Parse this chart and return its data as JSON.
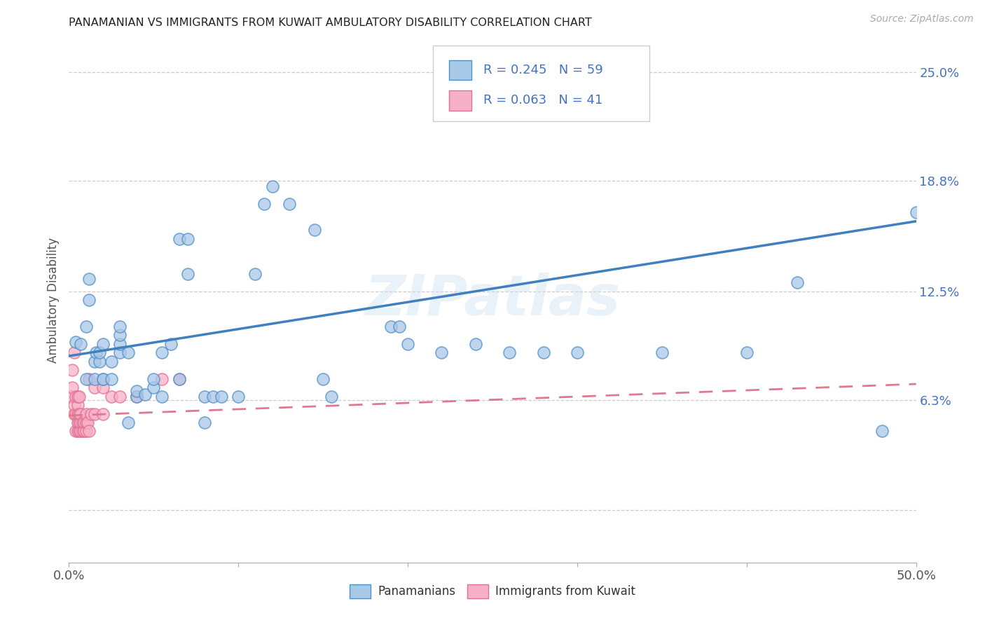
{
  "title": "PANAMANIAN VS IMMIGRANTS FROM KUWAIT AMBULATORY DISABILITY CORRELATION CHART",
  "source": "Source: ZipAtlas.com",
  "ylabel": "Ambulatory Disability",
  "xlim": [
    0.0,
    0.5
  ],
  "ylim": [
    -0.03,
    0.27
  ],
  "ytick_vals": [
    0.0,
    0.063,
    0.125,
    0.188,
    0.25
  ],
  "ytick_labels": [
    "",
    "6.3%",
    "12.5%",
    "18.8%",
    "25.0%"
  ],
  "xtick_vals": [
    0.0,
    0.1,
    0.2,
    0.3,
    0.4,
    0.5
  ],
  "xtick_labels": [
    "0.0%",
    "",
    "",
    "",
    "",
    "50.0%"
  ],
  "blue_fill": "#a8c8e8",
  "blue_edge": "#5090c8",
  "pink_fill": "#f8b0c8",
  "pink_edge": "#e07090",
  "line_blue_color": "#4080c0",
  "line_pink_color": "#e07890",
  "legend_text_color": "#4472c4",
  "watermark": "ZIPatlas",
  "blue_x": [
    0.004,
    0.007,
    0.01,
    0.01,
    0.012,
    0.012,
    0.015,
    0.015,
    0.016,
    0.018,
    0.018,
    0.02,
    0.02,
    0.02,
    0.025,
    0.025,
    0.03,
    0.03,
    0.03,
    0.03,
    0.035,
    0.035,
    0.04,
    0.04,
    0.045,
    0.05,
    0.05,
    0.055,
    0.055,
    0.06,
    0.065,
    0.065,
    0.07,
    0.07,
    0.08,
    0.08,
    0.085,
    0.09,
    0.1,
    0.11,
    0.115,
    0.12,
    0.13,
    0.145,
    0.15,
    0.155,
    0.19,
    0.195,
    0.2,
    0.22,
    0.24,
    0.26,
    0.28,
    0.3,
    0.35,
    0.4,
    0.43,
    0.48,
    0.5
  ],
  "blue_y": [
    0.096,
    0.095,
    0.075,
    0.105,
    0.12,
    0.132,
    0.075,
    0.085,
    0.09,
    0.085,
    0.09,
    0.075,
    0.075,
    0.095,
    0.075,
    0.085,
    0.09,
    0.095,
    0.1,
    0.105,
    0.05,
    0.09,
    0.065,
    0.068,
    0.066,
    0.07,
    0.075,
    0.065,
    0.09,
    0.095,
    0.075,
    0.155,
    0.135,
    0.155,
    0.05,
    0.065,
    0.065,
    0.065,
    0.065,
    0.135,
    0.175,
    0.185,
    0.175,
    0.16,
    0.075,
    0.065,
    0.105,
    0.105,
    0.095,
    0.09,
    0.095,
    0.09,
    0.09,
    0.09,
    0.09,
    0.09,
    0.13,
    0.045,
    0.17
  ],
  "pink_x": [
    0.001,
    0.002,
    0.002,
    0.003,
    0.003,
    0.003,
    0.004,
    0.004,
    0.004,
    0.005,
    0.005,
    0.005,
    0.005,
    0.005,
    0.006,
    0.006,
    0.006,
    0.006,
    0.007,
    0.007,
    0.007,
    0.008,
    0.008,
    0.009,
    0.009,
    0.01,
    0.01,
    0.01,
    0.011,
    0.012,
    0.012,
    0.013,
    0.015,
    0.015,
    0.02,
    0.02,
    0.025,
    0.03,
    0.04,
    0.055,
    0.065
  ],
  "pink_y": [
    0.065,
    0.07,
    0.08,
    0.055,
    0.06,
    0.09,
    0.045,
    0.055,
    0.065,
    0.045,
    0.05,
    0.055,
    0.06,
    0.065,
    0.045,
    0.05,
    0.055,
    0.065,
    0.045,
    0.05,
    0.055,
    0.045,
    0.05,
    0.045,
    0.05,
    0.045,
    0.05,
    0.055,
    0.05,
    0.045,
    0.075,
    0.055,
    0.055,
    0.07,
    0.055,
    0.07,
    0.065,
    0.065,
    0.065,
    0.075,
    0.075
  ],
  "blue_line_x0": 0.0,
  "blue_line_y0": 0.088,
  "blue_line_x1": 0.5,
  "blue_line_y1": 0.165,
  "pink_line_x0": 0.0,
  "pink_line_y0": 0.054,
  "pink_line_x1": 0.5,
  "pink_line_y1": 0.072
}
